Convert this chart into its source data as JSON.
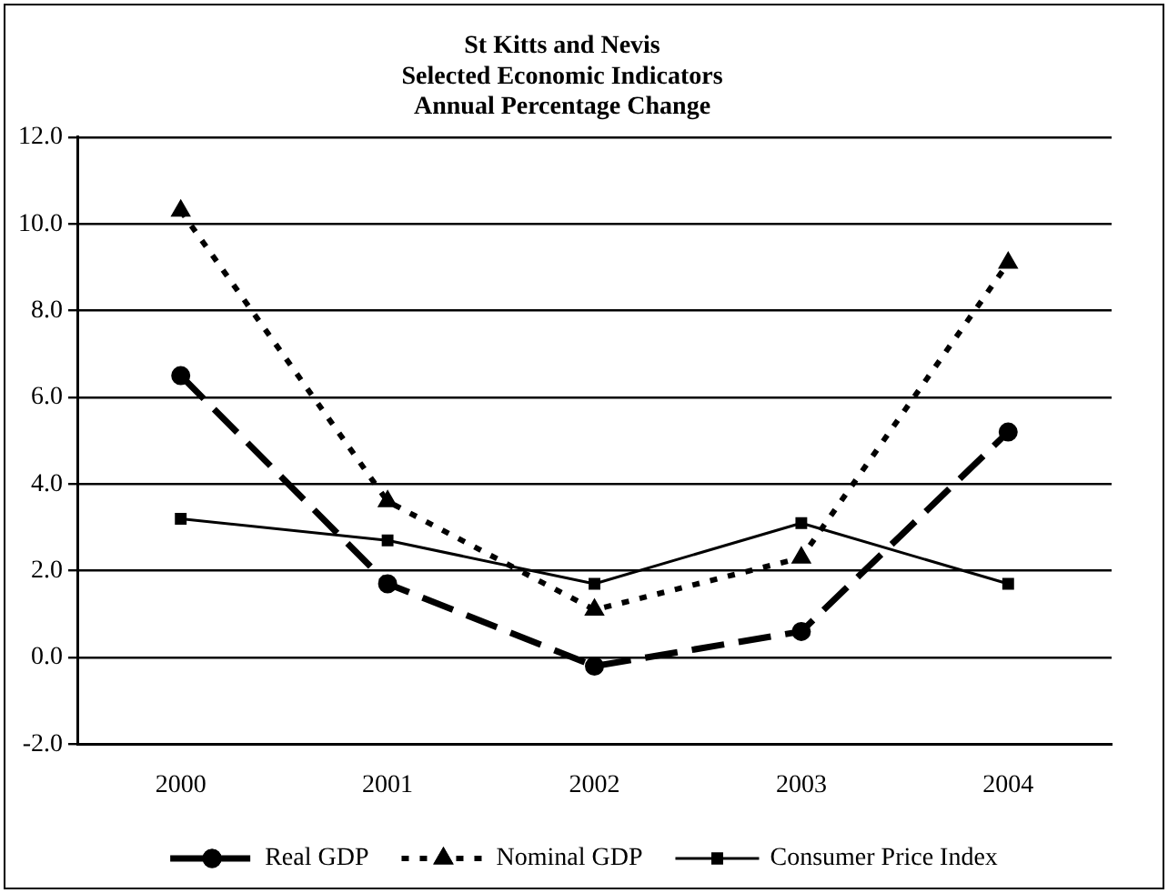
{
  "chart_data": {
    "type": "line",
    "title": "St Kitts and Nevis\nSelected Economic Indicators\nAnnual Percentage Change",
    "categories": [
      "2000",
      "2001",
      "2002",
      "2003",
      "2004"
    ],
    "series": [
      {
        "name": "Real GDP",
        "color": "#000000",
        "values": [
          6.5,
          1.7,
          -0.2,
          0.6,
          5.2
        ],
        "marker": "circle",
        "line_style": "dashed"
      },
      {
        "name": "Nominal GDP",
        "color": "#000000",
        "values": [
          10.3,
          3.6,
          1.1,
          2.3,
          9.1
        ],
        "marker": "triangle",
        "line_style": "dotted"
      },
      {
        "name": "Consumer Price Index",
        "color": "#000000",
        "values": [
          3.2,
          2.7,
          1.7,
          3.1,
          1.7
        ],
        "marker": "square",
        "line_style": "solid"
      }
    ],
    "ylim": [
      -2,
      12
    ],
    "yticks": [
      {
        "value": -2,
        "label": "-2.0"
      },
      {
        "value": 0,
        "label": "0.0"
      },
      {
        "value": 2,
        "label": "2.0"
      },
      {
        "value": 4,
        "label": "4.0"
      },
      {
        "value": 6,
        "label": "6.0"
      },
      {
        "value": 8,
        "label": "8.0"
      },
      {
        "value": 10,
        "label": "10.0"
      },
      {
        "value": 12,
        "label": "12.0"
      }
    ],
    "grid": "y",
    "legend": "bottom"
  }
}
